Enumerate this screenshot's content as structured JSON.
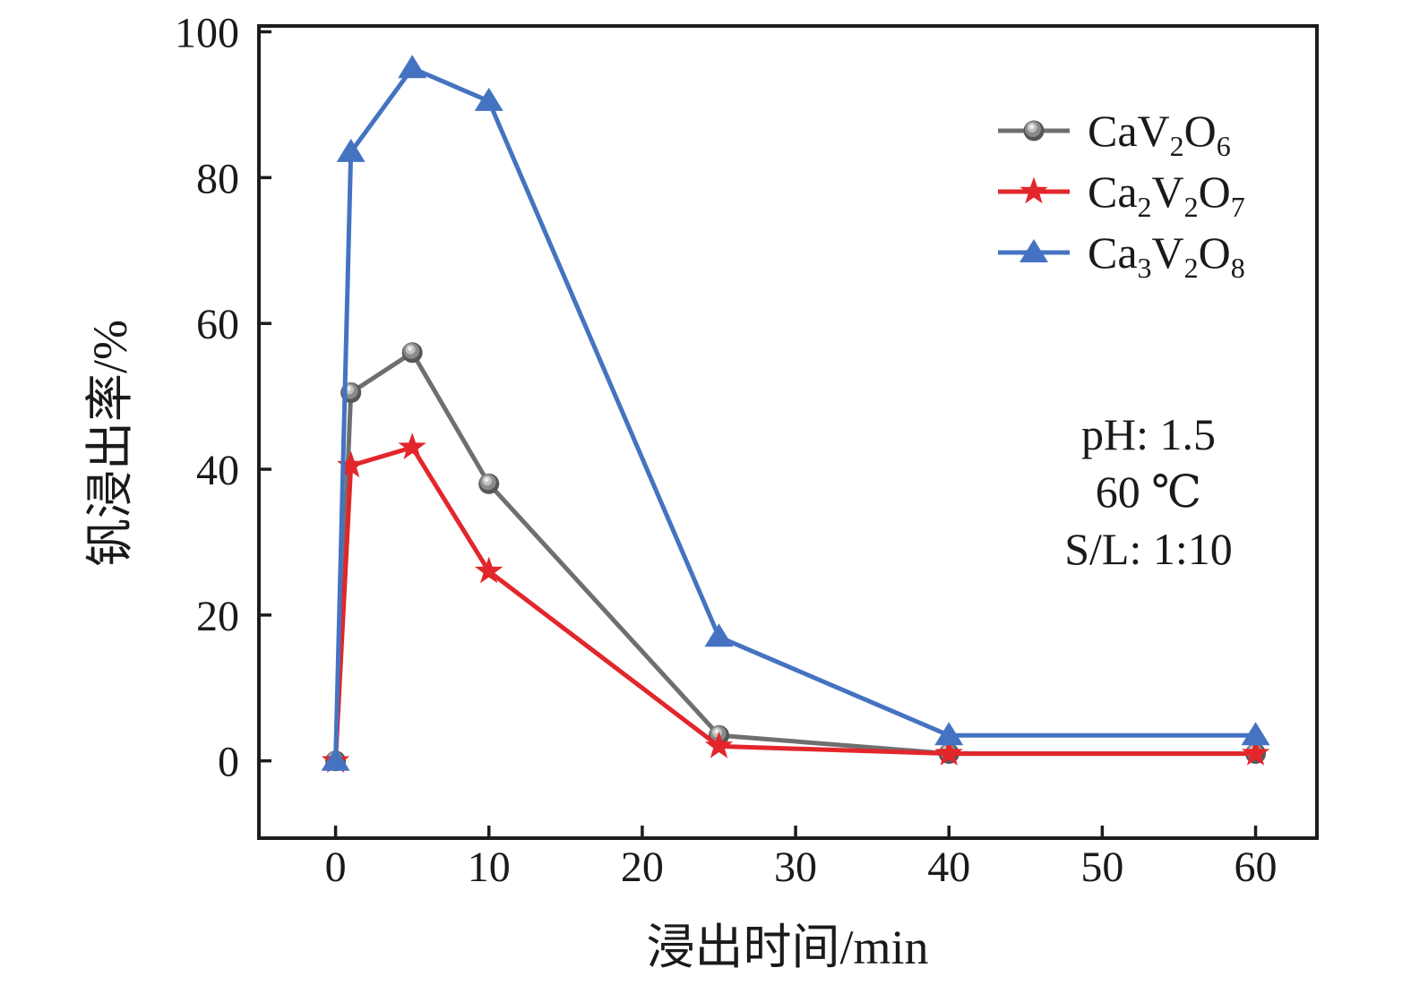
{
  "chart_data": {
    "type": "line",
    "title": "",
    "xlabel": "浸出时间/min",
    "ylabel": "钒浸出率/%",
    "x": [
      0,
      1,
      5,
      10,
      25,
      40,
      60
    ],
    "xticks": [
      "0",
      "10",
      "20",
      "30",
      "40",
      "50",
      "60"
    ],
    "yticks": [
      "0",
      "20",
      "40",
      "60",
      "80",
      "100"
    ],
    "xlim": [
      -5,
      64
    ],
    "ylim": [
      -10.6,
      100.8
    ],
    "grid": false,
    "legend_position": "upper-right-inside",
    "axis_color": "#1c1c1c",
    "annotations": [
      "pH: 1.5",
      "60 ℃",
      "S/L: 1:10"
    ],
    "series": [
      {
        "name": "CaV2O6",
        "label_parts": [
          {
            "text": "CaV"
          },
          {
            "text": "2",
            "sub": true
          },
          {
            "text": "O"
          },
          {
            "text": "6",
            "sub": true
          }
        ],
        "marker": "sphere",
        "color": "#6f6f6f",
        "values": [
          0,
          50.5,
          56,
          38,
          3.5,
          1,
          1
        ]
      },
      {
        "name": "Ca2V2O7",
        "label_parts": [
          {
            "text": "Ca"
          },
          {
            "text": "2",
            "sub": true
          },
          {
            "text": "V"
          },
          {
            "text": "2",
            "sub": true
          },
          {
            "text": "O"
          },
          {
            "text": "7",
            "sub": true
          }
        ],
        "marker": "star",
        "color": "#e2262b",
        "values": [
          0,
          40.5,
          43,
          26,
          2,
          1,
          1
        ]
      },
      {
        "name": "Ca3V2O8",
        "label_parts": [
          {
            "text": "Ca"
          },
          {
            "text": "3",
            "sub": true
          },
          {
            "text": "V"
          },
          {
            "text": "2",
            "sub": true
          },
          {
            "text": "O"
          },
          {
            "text": "8",
            "sub": true
          }
        ],
        "marker": "triangle",
        "color": "#4573c2",
        "values": [
          0,
          83.5,
          95,
          90.5,
          17,
          3.5,
          3.5
        ]
      }
    ]
  }
}
